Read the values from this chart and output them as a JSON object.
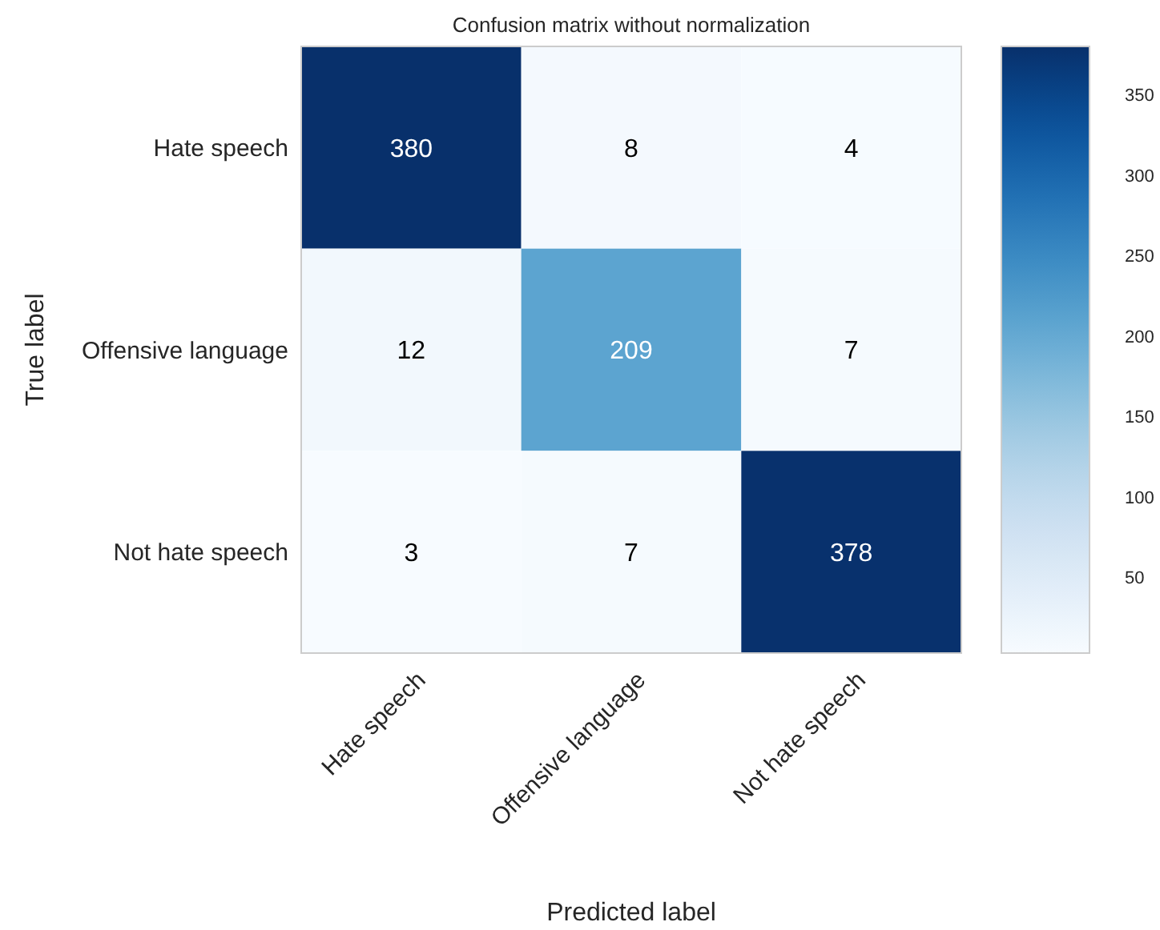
{
  "chart_data": {
    "type": "heatmap",
    "title": "Confusion matrix without normalization",
    "xlabel": "Predicted label",
    "ylabel": "True label",
    "categories": [
      "Hate speech",
      "Offensive language",
      "Not hate speech"
    ],
    "y_categories": [
      "Hate speech",
      "Offensive language",
      "Not hate speech"
    ],
    "cells": [
      [
        380,
        8,
        4
      ],
      [
        12,
        209,
        7
      ],
      [
        3,
        7,
        378
      ]
    ],
    "data_labels": true,
    "clim": [
      3,
      380
    ],
    "cticks": [
      50,
      100,
      150,
      200,
      250,
      300,
      350
    ]
  }
}
